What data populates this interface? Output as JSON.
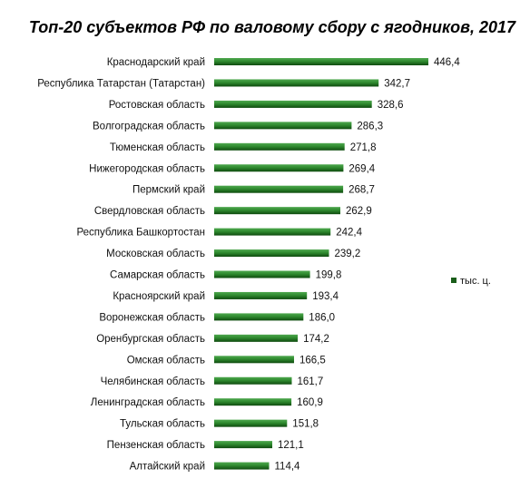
{
  "chart_data": {
    "type": "bar",
    "orientation": "horizontal",
    "title": "Топ-20 субъектов РФ по валовому сбору с ягодников, 2017",
    "categories": [
      "Краснодарский край",
      "Республика Татарстан (Татарстан)",
      "Ростовская область",
      "Волгоградская область",
      "Тюменская область",
      "Нижегородская область",
      "Пермский край",
      "Свердловская область",
      "Республика Башкортостан",
      "Московская область",
      "Самарская область",
      "Красноярский край",
      "Воронежская область",
      "Оренбургская область",
      "Омская область",
      "Челябинская область",
      "Ленинградская область",
      "Тульская область",
      "Пензенская область",
      "Алтайский край"
    ],
    "series": [
      {
        "name": "тыс. ц.",
        "values": [
          446.4,
          342.7,
          328.6,
          286.3,
          271.8,
          269.4,
          268.7,
          262.9,
          242.4,
          239.2,
          199.8,
          193.4,
          186.0,
          174.2,
          166.5,
          161.7,
          160.9,
          151.8,
          121.1,
          114.4
        ],
        "labels": [
          "446,4",
          "342,7",
          "328,6",
          "286,3",
          "271,8",
          "269,4",
          "268,7",
          "262,9",
          "242,4",
          "239,2",
          "199,8",
          "193,4",
          "186,0",
          "174,2",
          "166,5",
          "161,7",
          "160,9",
          "151,8",
          "121,1",
          "114,4"
        ]
      }
    ],
    "xlim": [
      0,
      446.4
    ],
    "grid": false,
    "legend_position": "right",
    "colors": {
      "bar_dark": "#0e4a0e",
      "bar_mid": "#2f8a2f",
      "bar_light": "#4fa84f"
    }
  }
}
